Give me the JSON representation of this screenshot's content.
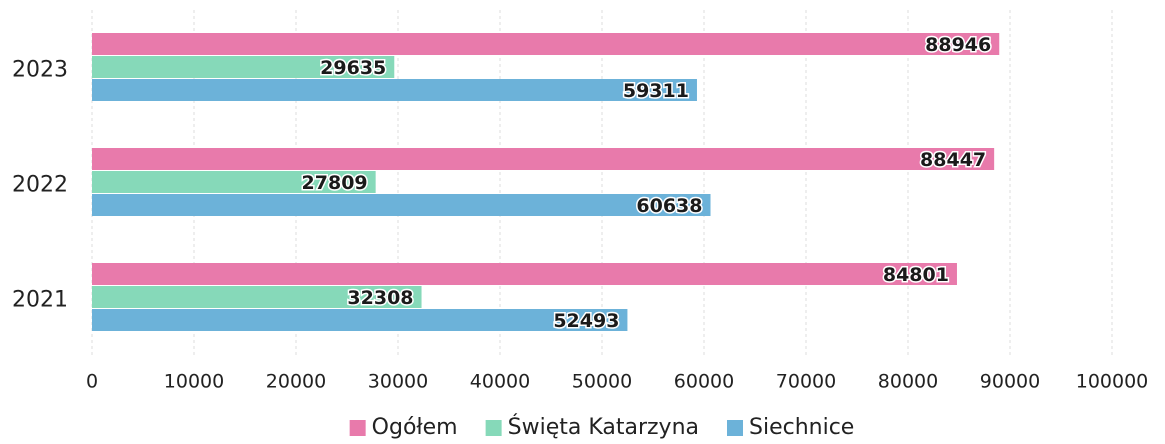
{
  "chart_data": {
    "type": "barh",
    "categories": [
      "2023",
      "2022",
      "2021"
    ],
    "series": [
      {
        "name": "Ogółem",
        "color": "#e87aab",
        "values": [
          88946,
          88447,
          84801
        ]
      },
      {
        "name": "Święta Katarzyna",
        "color": "#86d9b9",
        "values": [
          29635,
          27809,
          32308
        ]
      },
      {
        "name": "Siechnice",
        "color": "#6cb2d9",
        "values": [
          59311,
          60638,
          52493
        ]
      }
    ],
    "xlim": [
      0,
      100000
    ],
    "xticks": [
      0,
      10000,
      20000,
      30000,
      40000,
      50000,
      60000,
      70000,
      80000,
      90000,
      100000
    ],
    "grid": true,
    "legend": "bottom"
  }
}
